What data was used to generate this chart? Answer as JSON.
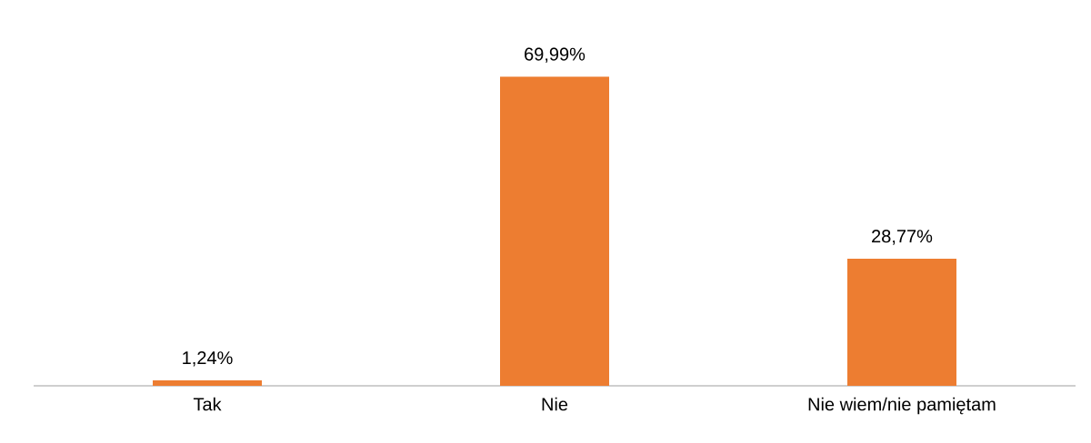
{
  "chart_data": {
    "type": "bar",
    "categories": [
      "Tak",
      "Nie",
      "Nie wiem/nie pamiętam"
    ],
    "values": [
      1.24,
      69.99,
      28.77
    ],
    "color": "#ed7d31",
    "value_labels": [
      "1,24%",
      "69,99%",
      "28,77%"
    ]
  }
}
